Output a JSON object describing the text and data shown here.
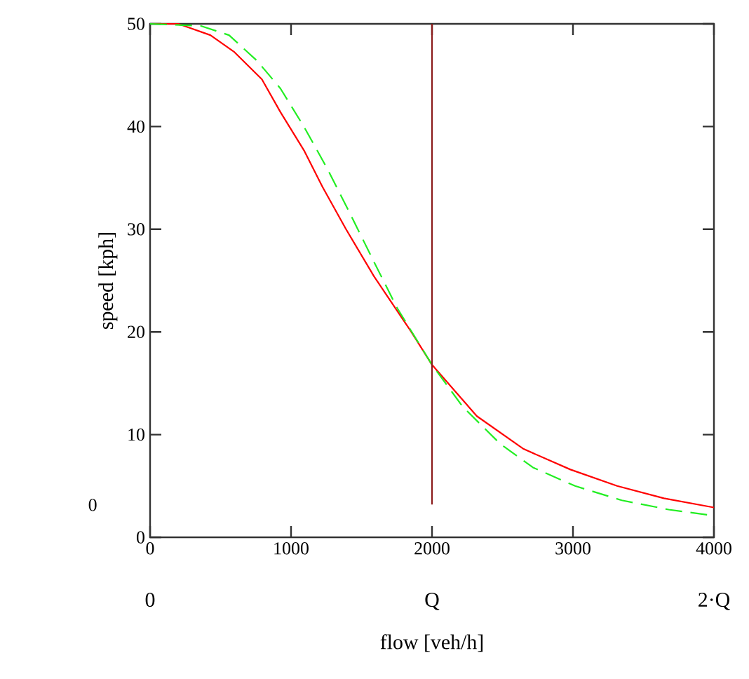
{
  "chart_data": {
    "type": "line",
    "xlabel": "flow [veh/h]",
    "ylabel": "speed [kph]",
    "xlim": [
      0,
      4000
    ],
    "ylim": [
      0,
      50
    ],
    "xticks": [
      0,
      1000,
      2000,
      3000,
      4000
    ],
    "yticks": [
      0,
      10,
      20,
      30,
      40,
      50
    ],
    "grid": false,
    "marker": "none",
    "series": [
      {
        "color": "#ff0000",
        "line_style": "solid",
        "x": [
          0,
          200,
          428,
          594,
          793,
          925,
          1091,
          1224,
          1390,
          1589,
          1853,
          2000,
          2318,
          2650,
          2982,
          3313,
          3645,
          4000
        ],
        "values": [
          50,
          50,
          48.9,
          47.3,
          44.6,
          41.4,
          37.7,
          34.1,
          30.0,
          25.4,
          20.0,
          16.8,
          11.8,
          8.6,
          6.6,
          5.0,
          3.8,
          2.9
        ]
      },
      {
        "color": "#22ee22",
        "line_style": "dashed",
        "x": [
          0,
          361,
          560,
          759,
          925,
          1091,
          1257,
          1423,
          1589,
          1754,
          2000,
          2219,
          2484,
          2716,
          3015,
          3346,
          3679,
          4000
        ],
        "values": [
          50,
          49.8,
          48.9,
          46.4,
          43.7,
          40.0,
          35.9,
          31.4,
          26.8,
          22.3,
          16.8,
          12.7,
          9.1,
          6.8,
          5.0,
          3.6,
          2.7,
          2.1
        ]
      },
      {
        "color": "#8b1a1a",
        "line_style": "solid",
        "x": [
          2000,
          2000
        ],
        "values": [
          3.2,
          50
        ]
      }
    ],
    "annotations": [
      "0",
      "0",
      "Q",
      "2·Q"
    ]
  }
}
